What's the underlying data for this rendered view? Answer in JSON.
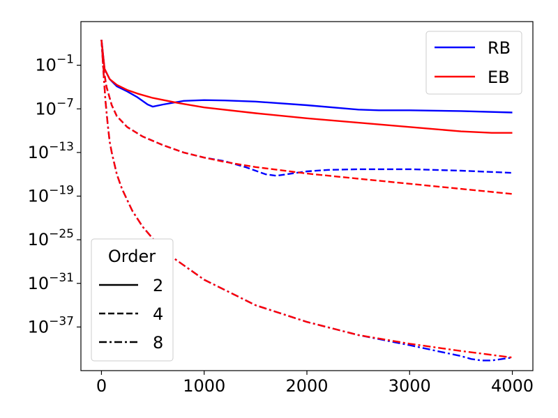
{
  "chart_data": {
    "type": "line",
    "title": "",
    "xlabel": "",
    "ylabel": "",
    "xlim": [
      -200,
      4200
    ],
    "ylim": [
      -43,
      5
    ],
    "y_scale": "log",
    "grid": false,
    "x_ticks": [
      {
        "value": 0,
        "label": "0"
      },
      {
        "value": 1000,
        "label": "1000"
      },
      {
        "value": 2000,
        "label": "2000"
      },
      {
        "value": 3000,
        "label": "3000"
      },
      {
        "value": 4000,
        "label": "4000"
      }
    ],
    "y_ticks": [
      {
        "exp": -1,
        "base": "10",
        "sup": "−1"
      },
      {
        "exp": -7,
        "base": "10",
        "sup": "−7"
      },
      {
        "exp": -13,
        "base": "10",
        "sup": "−13"
      },
      {
        "exp": -19,
        "base": "10",
        "sup": "−19"
      },
      {
        "exp": -25,
        "base": "10",
        "sup": "−25"
      },
      {
        "exp": -31,
        "base": "10",
        "sup": "−31"
      },
      {
        "exp": -37,
        "base": "10",
        "sup": "−37"
      }
    ],
    "series": [
      {
        "name": "RB",
        "order": "2",
        "color": "#0000ff",
        "dash": "solid",
        "x": [
          0,
          30,
          80,
          150,
          250,
          350,
          450,
          500,
          600,
          800,
          1000,
          1200,
          1500,
          2000,
          2500,
          2700,
          3000,
          3500,
          4000
        ],
        "log10_y": [
          2.5,
          -1.5,
          -2.9,
          -3.9,
          -4.6,
          -5.4,
          -6.4,
          -6.7,
          -6.4,
          -5.9,
          -5.8,
          -5.85,
          -6.0,
          -6.5,
          -7.1,
          -7.2,
          -7.2,
          -7.3,
          -7.5
        ]
      },
      {
        "name": "EB",
        "order": "2",
        "color": "#ff0000",
        "dash": "solid",
        "x": [
          0,
          30,
          80,
          150,
          250,
          350,
          500,
          750,
          1000,
          1500,
          2000,
          2500,
          3000,
          3500,
          3800,
          4000
        ],
        "log10_y": [
          2.5,
          -1.5,
          -2.9,
          -3.7,
          -4.4,
          -4.9,
          -5.5,
          -6.2,
          -6.8,
          -7.6,
          -8.3,
          -8.9,
          -9.5,
          -10.1,
          -10.3,
          -10.3
        ]
      },
      {
        "name": "RB",
        "order": "4",
        "color": "#0000ff",
        "dash": "dashed",
        "x": [
          0,
          20,
          50,
          100,
          150,
          250,
          400,
          600,
          800,
          1000,
          1200,
          1400,
          1600,
          1700,
          1800,
          2000,
          2200,
          2500,
          2800,
          3000,
          3500,
          4000
        ],
        "log10_y": [
          2.5,
          -1.5,
          -4.0,
          -6.5,
          -8.0,
          -9.5,
          -10.8,
          -12.0,
          -13.0,
          -13.7,
          -14.2,
          -15.0,
          -16.0,
          -16.2,
          -16.0,
          -15.6,
          -15.4,
          -15.3,
          -15.3,
          -15.3,
          -15.5,
          -15.8
        ]
      },
      {
        "name": "EB",
        "order": "4",
        "color": "#ff0000",
        "dash": "dashed",
        "x": [
          0,
          20,
          50,
          100,
          150,
          250,
          400,
          600,
          800,
          1000,
          1200,
          1500,
          2000,
          2500,
          3000,
          3500,
          4000
        ],
        "log10_y": [
          2.5,
          -1.5,
          -4.0,
          -6.5,
          -8.0,
          -9.5,
          -10.8,
          -12.0,
          -13.0,
          -13.7,
          -14.3,
          -15.0,
          -15.9,
          -16.6,
          -17.3,
          -18.0,
          -18.7
        ]
      },
      {
        "name": "RB",
        "order": "8",
        "color": "#0000ff",
        "dash": "dashdot",
        "x": [
          0,
          20,
          40,
          60,
          80,
          100,
          150,
          200,
          300,
          400,
          600,
          800,
          1000,
          1500,
          2000,
          2500,
          3000,
          3300,
          3500,
          3600,
          3700,
          3800,
          4000
        ],
        "log10_y": [
          2.5,
          -2.0,
          -6.0,
          -9.0,
          -11.5,
          -13.0,
          -16.0,
          -18.0,
          -21.0,
          -23.2,
          -26.5,
          -28.5,
          -30.5,
          -34.0,
          -36.3,
          -38.1,
          -39.5,
          -40.4,
          -41.0,
          -41.4,
          -41.6,
          -41.6,
          -41.2
        ]
      },
      {
        "name": "EB",
        "order": "8",
        "color": "#ff0000",
        "dash": "dashdot",
        "x": [
          0,
          20,
          40,
          60,
          80,
          100,
          150,
          200,
          300,
          400,
          600,
          800,
          1000,
          1500,
          2000,
          2500,
          3000,
          3500,
          4000
        ],
        "log10_y": [
          2.5,
          -2.0,
          -6.0,
          -9.0,
          -11.5,
          -13.0,
          -16.0,
          -18.0,
          -21.0,
          -23.2,
          -26.5,
          -28.5,
          -30.5,
          -34.0,
          -36.3,
          -38.1,
          -39.3,
          -40.3,
          -41.2
        ]
      }
    ],
    "legend_methods": {
      "placement": "upper right",
      "entries": [
        {
          "label": "RB",
          "color": "#0000ff"
        },
        {
          "label": "EB",
          "color": "#ff0000"
        }
      ]
    },
    "legend_order": {
      "placement": "lower left",
      "title": "Order",
      "entries": [
        {
          "label": "2",
          "dash": "solid"
        },
        {
          "label": "4",
          "dash": "dashed"
        },
        {
          "label": "8",
          "dash": "dashdot"
        }
      ]
    }
  }
}
